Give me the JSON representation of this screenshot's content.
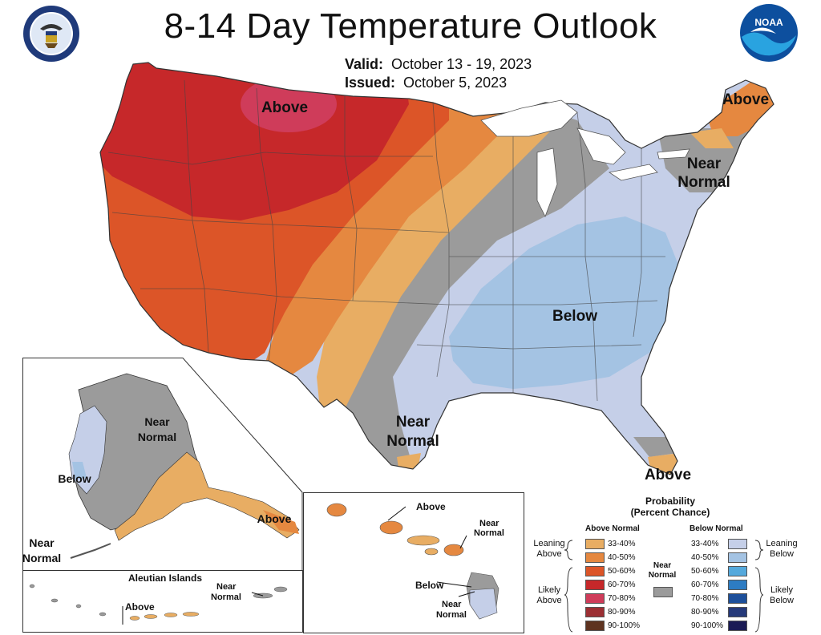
{
  "title": "8-14 Day Temperature Outlook",
  "valid_label": "Valid:",
  "valid_value": "October 13 - 19, 2023",
  "issued_label": "Issued:",
  "issued_value": "October 5, 2023",
  "logos": {
    "left": "department-of-commerce-seal",
    "right": "noaa-logo",
    "noaa_text": "NOAA"
  },
  "map_labels": {
    "above_northwest": "Above",
    "above_maine": "Above",
    "near_normal_northeast_1": "Near",
    "near_normal_northeast_2": "Normal",
    "below_southeast": "Below",
    "near_normal_texas_1": "Near",
    "near_normal_texas_2": "Normal",
    "above_florida": "Above"
  },
  "alaska_labels": {
    "near_normal_1": "Near",
    "near_normal_2": "Normal",
    "below": "Below",
    "above": "Above",
    "near_normal_sw_1": "Near",
    "near_normal_sw_2": "Normal"
  },
  "aleutian": {
    "title": "Aleutian Islands",
    "near_normal_1": "Near",
    "near_normal_2": "Normal",
    "above": "Above"
  },
  "hawaii_labels": {
    "above": "Above",
    "near_normal_1": "Near",
    "near_normal_2": "Normal",
    "below": "Below",
    "near_normal_b1": "Near",
    "near_normal_b2": "Normal"
  },
  "legend": {
    "title_1": "Probability",
    "title_2": "(Percent Chance)",
    "above_header": "Above Normal",
    "below_header": "Below Normal",
    "leaning_above_1": "Leaning",
    "leaning_above_2": "Above",
    "likely_above_1": "Likely",
    "likely_above_2": "Above",
    "near_normal_1": "Near",
    "near_normal_2": "Normal",
    "leaning_below_1": "Leaning",
    "leaning_below_2": "Below",
    "likely_below_1": "Likely",
    "likely_below_2": "Below",
    "above_bins": [
      {
        "label": "33-40%",
        "color": "#e8ad63"
      },
      {
        "label": "40-50%",
        "color": "#e58840"
      },
      {
        "label": "50-60%",
        "color": "#dc5528"
      },
      {
        "label": "60-70%",
        "color": "#c6282a"
      },
      {
        "label": "70-80%",
        "color": "#cf3c5a"
      },
      {
        "label": "80-90%",
        "color": "#9c2f33"
      },
      {
        "label": "90-100%",
        "color": "#5e3320"
      }
    ],
    "below_bins": [
      {
        "label": "33-40%",
        "color": "#c5cfe8"
      },
      {
        "label": "40-50%",
        "color": "#a4c3e3"
      },
      {
        "label": "50-60%",
        "color": "#55a9dc"
      },
      {
        "label": "60-70%",
        "color": "#2d7cc3"
      },
      {
        "label": "70-80%",
        "color": "#1d4f9a"
      },
      {
        "label": "80-90%",
        "color": "#263a7a"
      },
      {
        "label": "90-100%",
        "color": "#1b1b55"
      }
    ],
    "near_normal_color": "#9b9b9b"
  }
}
